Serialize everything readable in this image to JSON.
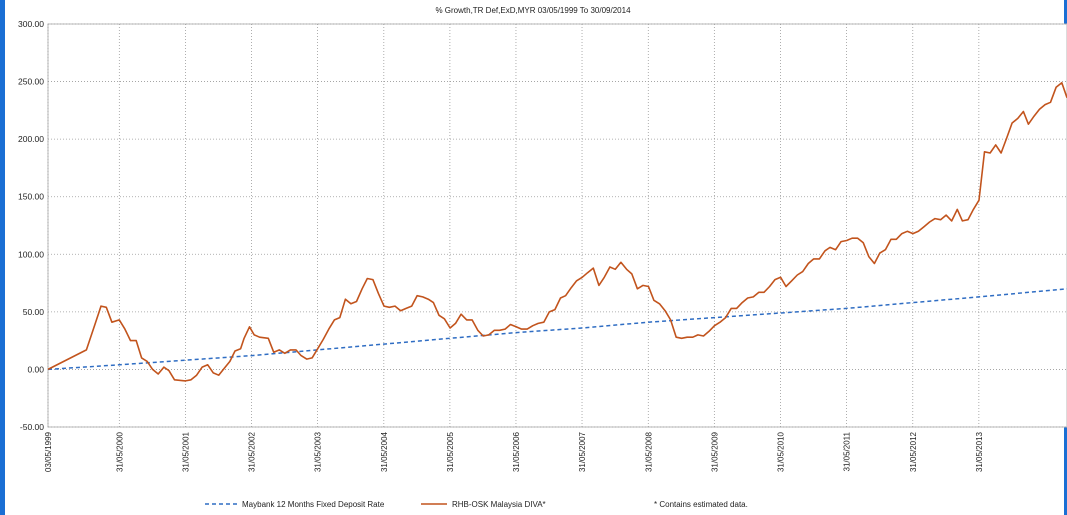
{
  "chart_data": {
    "type": "line",
    "title": "% Growth,TR Def,ExD,MYR 03/05/1999 To 30/09/2014",
    "xlabel": "",
    "ylabel": "",
    "ylim": [
      -50,
      300
    ],
    "yticks": [
      "300.00",
      "250.00",
      "200.00",
      "150.00",
      "100.00",
      "50.00",
      "0.00",
      "-50.00"
    ],
    "xticks": [
      "03/05/1999",
      "31/05/2000",
      "31/05/2001",
      "31/05/2002",
      "31/05/2003",
      "31/05/2004",
      "31/05/2005",
      "31/05/2006",
      "31/05/2007",
      "31/05/2008",
      "31/05/2009",
      "31/05/2010",
      "31/05/2011",
      "31/05/2012",
      "31/05/2013"
    ],
    "xlim": [
      "1999-05-03",
      "2014-09-30"
    ],
    "grid": true,
    "legend_position": "bottom",
    "note": "* Contains estimated data.",
    "colors": {
      "deposit": "#2f6dc3",
      "fund": "#c2541d"
    },
    "series": [
      {
        "name": "Maybank 12 Months Fixed Deposit Rate",
        "style": "dashed",
        "points": [
          [
            "1999-05-03",
            0
          ],
          [
            "2000-05-31",
            4
          ],
          [
            "2001-05-31",
            8
          ],
          [
            "2002-05-31",
            12
          ],
          [
            "2003-05-31",
            17
          ],
          [
            "2004-05-31",
            22
          ],
          [
            "2005-05-31",
            27
          ],
          [
            "2006-05-31",
            32
          ],
          [
            "2007-05-31",
            36
          ],
          [
            "2008-05-31",
            41
          ],
          [
            "2009-05-31",
            45
          ],
          [
            "2010-05-31",
            49
          ],
          [
            "2011-05-31",
            53
          ],
          [
            "2012-05-31",
            58
          ],
          [
            "2013-05-31",
            63
          ],
          [
            "2014-09-30",
            70
          ]
        ]
      },
      {
        "name": "RHB-OSK Malaysia DIVA*",
        "style": "solid",
        "points": [
          [
            "1999-05-03",
            0
          ],
          [
            "1999-12-01",
            17
          ],
          [
            "2000-01-15",
            38
          ],
          [
            "2000-02-20",
            55
          ],
          [
            "2000-03-20",
            54
          ],
          [
            "2000-04-20",
            41
          ],
          [
            "2000-05-31",
            43
          ],
          [
            "2000-07-01",
            35
          ],
          [
            "2000-08-01",
            25
          ],
          [
            "2000-09-01",
            25
          ],
          [
            "2000-10-01",
            10
          ],
          [
            "2000-11-01",
            7
          ],
          [
            "2000-12-01",
            0
          ],
          [
            "2001-01-01",
            -4
          ],
          [
            "2001-02-01",
            2
          ],
          [
            "2001-03-01",
            -1
          ],
          [
            "2001-04-01",
            -9
          ],
          [
            "2001-05-31",
            -10
          ],
          [
            "2001-07-01",
            -9
          ],
          [
            "2001-08-01",
            -5
          ],
          [
            "2001-09-01",
            2
          ],
          [
            "2001-10-01",
            4
          ],
          [
            "2001-11-01",
            -3
          ],
          [
            "2001-12-01",
            -5
          ],
          [
            "2002-01-01",
            1
          ],
          [
            "2002-02-01",
            7
          ],
          [
            "2002-03-01",
            16
          ],
          [
            "2002-04-01",
            18
          ],
          [
            "2002-04-20",
            27
          ],
          [
            "2002-05-20",
            37
          ],
          [
            "2002-06-15",
            30
          ],
          [
            "2002-07-15",
            28
          ],
          [
            "2002-09-01",
            27
          ],
          [
            "2002-10-01",
            15
          ],
          [
            "2002-11-01",
            17
          ],
          [
            "2002-12-01",
            14
          ],
          [
            "2003-01-01",
            17
          ],
          [
            "2003-02-01",
            17
          ],
          [
            "2003-03-01",
            12
          ],
          [
            "2003-04-01",
            9
          ],
          [
            "2003-05-01",
            10
          ],
          [
            "2003-06-01",
            18
          ],
          [
            "2003-07-01",
            26
          ],
          [
            "2003-08-01",
            35
          ],
          [
            "2003-09-01",
            43
          ],
          [
            "2003-10-01",
            45
          ],
          [
            "2003-11-01",
            61
          ],
          [
            "2003-12-01",
            57
          ],
          [
            "2004-01-01",
            59
          ],
          [
            "2004-02-01",
            70
          ],
          [
            "2004-03-01",
            79
          ],
          [
            "2004-04-01",
            78
          ],
          [
            "2004-05-01",
            66
          ],
          [
            "2004-06-01",
            55
          ],
          [
            "2004-07-01",
            54
          ],
          [
            "2004-08-01",
            55
          ],
          [
            "2004-09-01",
            51
          ],
          [
            "2004-10-01",
            53
          ],
          [
            "2004-11-01",
            55
          ],
          [
            "2004-12-01",
            64
          ],
          [
            "2005-01-01",
            63
          ],
          [
            "2005-02-01",
            61
          ],
          [
            "2005-03-01",
            58
          ],
          [
            "2005-04-01",
            47
          ],
          [
            "2005-05-01",
            44
          ],
          [
            "2005-06-01",
            36
          ],
          [
            "2005-07-01",
            40
          ],
          [
            "2005-08-01",
            48
          ],
          [
            "2005-09-01",
            43
          ],
          [
            "2005-10-01",
            43
          ],
          [
            "2005-11-01",
            34
          ],
          [
            "2005-12-01",
            29
          ],
          [
            "2006-01-01",
            30
          ],
          [
            "2006-02-01",
            34
          ],
          [
            "2006-03-01",
            34
          ],
          [
            "2006-04-01",
            35
          ],
          [
            "2006-05-01",
            39
          ],
          [
            "2006-06-01",
            37
          ],
          [
            "2006-07-01",
            35
          ],
          [
            "2006-08-01",
            35
          ],
          [
            "2006-09-01",
            38
          ],
          [
            "2006-10-01",
            40
          ],
          [
            "2006-11-01",
            41
          ],
          [
            "2006-12-01",
            50
          ],
          [
            "2007-01-01",
            52
          ],
          [
            "2007-02-01",
            62
          ],
          [
            "2007-03-01",
            64
          ],
          [
            "2007-04-01",
            71
          ],
          [
            "2007-05-01",
            77
          ],
          [
            "2007-06-01",
            80
          ],
          [
            "2007-07-01",
            84
          ],
          [
            "2007-08-01",
            88
          ],
          [
            "2007-09-01",
            73
          ],
          [
            "2007-10-01",
            80
          ],
          [
            "2007-11-01",
            89
          ],
          [
            "2007-12-01",
            87
          ],
          [
            "2008-01-01",
            93
          ],
          [
            "2008-02-01",
            87
          ],
          [
            "2008-03-01",
            83
          ],
          [
            "2008-04-01",
            70
          ],
          [
            "2008-05-01",
            73
          ],
          [
            "2008-06-01",
            72
          ],
          [
            "2008-07-01",
            60
          ],
          [
            "2008-08-01",
            57
          ],
          [
            "2008-09-01",
            51
          ],
          [
            "2008-10-01",
            43
          ],
          [
            "2008-11-01",
            28
          ],
          [
            "2008-12-01",
            27
          ],
          [
            "2009-01-01",
            28
          ],
          [
            "2009-02-01",
            28
          ],
          [
            "2009-03-01",
            30
          ],
          [
            "2009-04-01",
            29
          ],
          [
            "2009-05-01",
            33
          ],
          [
            "2009-06-01",
            38
          ],
          [
            "2009-07-01",
            41
          ],
          [
            "2009-08-01",
            45
          ],
          [
            "2009-09-01",
            53
          ],
          [
            "2009-10-01",
            53
          ],
          [
            "2009-11-01",
            58
          ],
          [
            "2009-12-01",
            62
          ],
          [
            "2010-01-01",
            63
          ],
          [
            "2010-02-01",
            67
          ],
          [
            "2010-03-01",
            67
          ],
          [
            "2010-04-01",
            72
          ],
          [
            "2010-05-01",
            78
          ],
          [
            "2010-06-01",
            80
          ],
          [
            "2010-07-01",
            72
          ],
          [
            "2010-08-01",
            77
          ],
          [
            "2010-09-01",
            82
          ],
          [
            "2010-10-01",
            85
          ],
          [
            "2010-11-01",
            92
          ],
          [
            "2010-12-01",
            96
          ],
          [
            "2011-01-01",
            96
          ],
          [
            "2011-02-01",
            103
          ],
          [
            "2011-03-01",
            106
          ],
          [
            "2011-04-01",
            104
          ],
          [
            "2011-05-01",
            111
          ],
          [
            "2011-06-01",
            112
          ],
          [
            "2011-07-01",
            114
          ],
          [
            "2011-08-01",
            114
          ],
          [
            "2011-09-01",
            110
          ],
          [
            "2011-10-01",
            98
          ],
          [
            "2011-11-01",
            92
          ],
          [
            "2011-12-01",
            101
          ],
          [
            "2012-01-01",
            104
          ],
          [
            "2012-02-01",
            113
          ],
          [
            "2012-03-01",
            113
          ],
          [
            "2012-04-01",
            118
          ],
          [
            "2012-05-01",
            120
          ],
          [
            "2012-06-01",
            118
          ],
          [
            "2012-07-01",
            120
          ],
          [
            "2012-08-01",
            124
          ],
          [
            "2012-09-01",
            128
          ],
          [
            "2012-10-01",
            131
          ],
          [
            "2012-11-01",
            130
          ],
          [
            "2012-12-01",
            134
          ],
          [
            "2013-01-01",
            129
          ],
          [
            "2013-02-01",
            139
          ],
          [
            "2013-03-01",
            129
          ],
          [
            "2013-04-01",
            130
          ],
          [
            "2013-05-01",
            139
          ],
          [
            "2013-06-01",
            147
          ],
          [
            "2013-07-01",
            189
          ],
          [
            "2013-08-01",
            188
          ],
          [
            "2013-09-01",
            195
          ],
          [
            "2013-10-01",
            188
          ],
          [
            "2013-11-01",
            201
          ],
          [
            "2013-12-01",
            214
          ],
          [
            "2014-01-01",
            218
          ],
          [
            "2014-02-01",
            224
          ],
          [
            "2014-03-01",
            213
          ],
          [
            "2014-04-01",
            220
          ],
          [
            "2014-05-01",
            226
          ],
          [
            "2014-06-01",
            230
          ],
          [
            "2014-07-01",
            232
          ],
          [
            "2014-08-01",
            245
          ],
          [
            "2014-09-01",
            249
          ],
          [
            "2014-09-30",
            236
          ]
        ]
      }
    ]
  }
}
